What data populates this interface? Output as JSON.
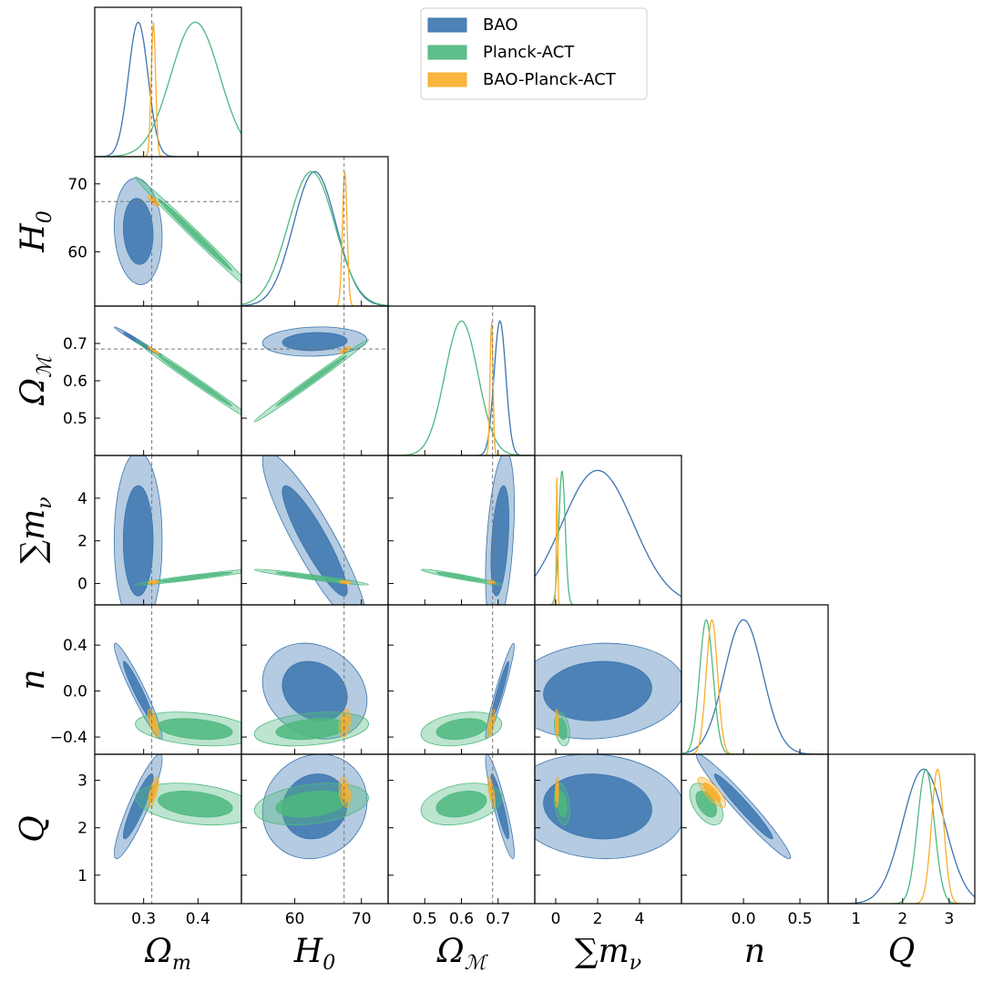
{
  "chart_data": {
    "type": "corner",
    "parameters": [
      {
        "key": "om",
        "label": "Ω",
        "label_sub": "m",
        "range": [
          0.21,
          0.48
        ],
        "ticks": [
          0.3,
          0.4
        ],
        "tick_labels": [
          "0.3",
          "0.4"
        ],
        "reference": 0.315
      },
      {
        "key": "h0",
        "label": "H",
        "label_sub": "0",
        "range": [
          52,
          74
        ],
        "ticks": [
          60,
          70
        ],
        "tick_labels": [
          "60",
          "70"
        ],
        "reference": 67.4
      },
      {
        "key": "oml",
        "label": "Ω",
        "label_sub": "ℳ",
        "range": [
          0.4,
          0.8
        ],
        "ticks": [
          0.5,
          0.6,
          0.7
        ],
        "tick_labels": [
          "0.5",
          "0.6",
          "0.7"
        ],
        "reference": 0.685
      },
      {
        "key": "mnu",
        "label": "∑m",
        "label_sub": "ν",
        "range": [
          -1,
          6
        ],
        "ticks": [
          0,
          2,
          4
        ],
        "tick_labels": [
          "0",
          "2",
          "4"
        ],
        "reference": null
      },
      {
        "key": "n",
        "label": "n",
        "label_sub": "",
        "range": [
          -0.55,
          0.75
        ],
        "ticks": [
          -0.4,
          0.0,
          0.4
        ],
        "tick_labels": [
          "−0.4",
          "0.0",
          "0.4"
        ],
        "reference": null
      },
      {
        "key": "q",
        "label": "Q",
        "label_sub": "",
        "range": [
          0.4,
          3.55
        ],
        "ticks": [
          1,
          2,
          3
        ],
        "tick_labels": [
          "1",
          "2",
          "3"
        ],
        "reference": null
      }
    ],
    "x_tick_overrides": {
      "n": {
        "ticks": [
          0.0,
          0.5
        ],
        "tick_labels": [
          "0.0",
          "0.5"
        ]
      }
    },
    "legend": [
      {
        "name": "BAO",
        "color": "#3b75af"
      },
      {
        "name": "Planck-ACT",
        "color": "#4eb87e"
      },
      {
        "name": "BAO-Planck-ACT",
        "color": "#f9ad2a"
      }
    ],
    "series": [
      {
        "name": "BAO",
        "color": "#3b75af",
        "means": {
          "om": 0.29,
          "h0": 63.0,
          "oml": 0.705,
          "mnu": 2.0,
          "n": 0.0,
          "q": 2.45
        },
        "sigmas": {
          "om": 0.018,
          "h0": 3.2,
          "oml": 0.016,
          "mnu": 1.7,
          "n": 0.17,
          "q": 0.45
        },
        "corr": {
          "om|h0": -0.1,
          "om|oml": -0.99,
          "h0|oml": 0.1,
          "om|mnu": 0.0,
          "h0|mnu": -0.9,
          "oml|mnu": 0.4,
          "om|n": -0.95,
          "h0|n": -0.2,
          "oml|n": 0.95,
          "mnu|n": 0.1,
          "om|q": 0.9,
          "h0|q": 0.1,
          "oml|q": -0.9,
          "mnu|q": -0.1,
          "n|q": -0.97
        }
      },
      {
        "name": "Planck-ACT",
        "color": "#4eb87e",
        "means": {
          "om": 0.395,
          "h0": 62.5,
          "oml": 0.6,
          "mnu": 0.3,
          "n": -0.33,
          "q": 2.5
        },
        "sigmas": {
          "om": 0.045,
          "h0": 3.5,
          "oml": 0.045,
          "mnu": 0.15,
          "n": 0.06,
          "q": 0.18
        },
        "corr": {
          "om|h0": -0.995,
          "om|oml": -0.995,
          "h0|oml": 0.995,
          "om|mnu": 0.95,
          "h0|mnu": -0.95,
          "oml|mnu": -0.95,
          "om|n": -0.3,
          "h0|n": 0.3,
          "oml|n": 0.3,
          "mnu|n": -0.3,
          "om|q": -0.3,
          "h0|q": 0.3,
          "oml|q": 0.3,
          "mnu|q": -0.3,
          "n|q": -0.5
        }
      },
      {
        "name": "BAO-Planck-ACT",
        "color": "#f9ad2a",
        "means": {
          "om": 0.318,
          "h0": 67.5,
          "oml": 0.682,
          "mnu": 0.06,
          "n": -0.28,
          "q": 2.75
        },
        "sigmas": {
          "om": 0.004,
          "h0": 0.35,
          "oml": 0.004,
          "mnu": 0.03,
          "n": 0.05,
          "q": 0.13
        },
        "corr": {
          "om|h0": -0.8,
          "om|oml": -0.95,
          "h0|oml": 0.8,
          "om|mnu": 0.3,
          "h0|mnu": -0.3,
          "oml|mnu": -0.3,
          "om|n": -0.7,
          "h0|n": 0.3,
          "oml|n": 0.7,
          "mnu|n": -0.2,
          "om|q": 0.7,
          "h0|q": -0.3,
          "oml|q": -0.7,
          "mnu|q": 0.2,
          "n|q": -0.8
        }
      }
    ],
    "description_type": "triangle plot of 1D marginals and 2D 68%/95% credible contours"
  }
}
